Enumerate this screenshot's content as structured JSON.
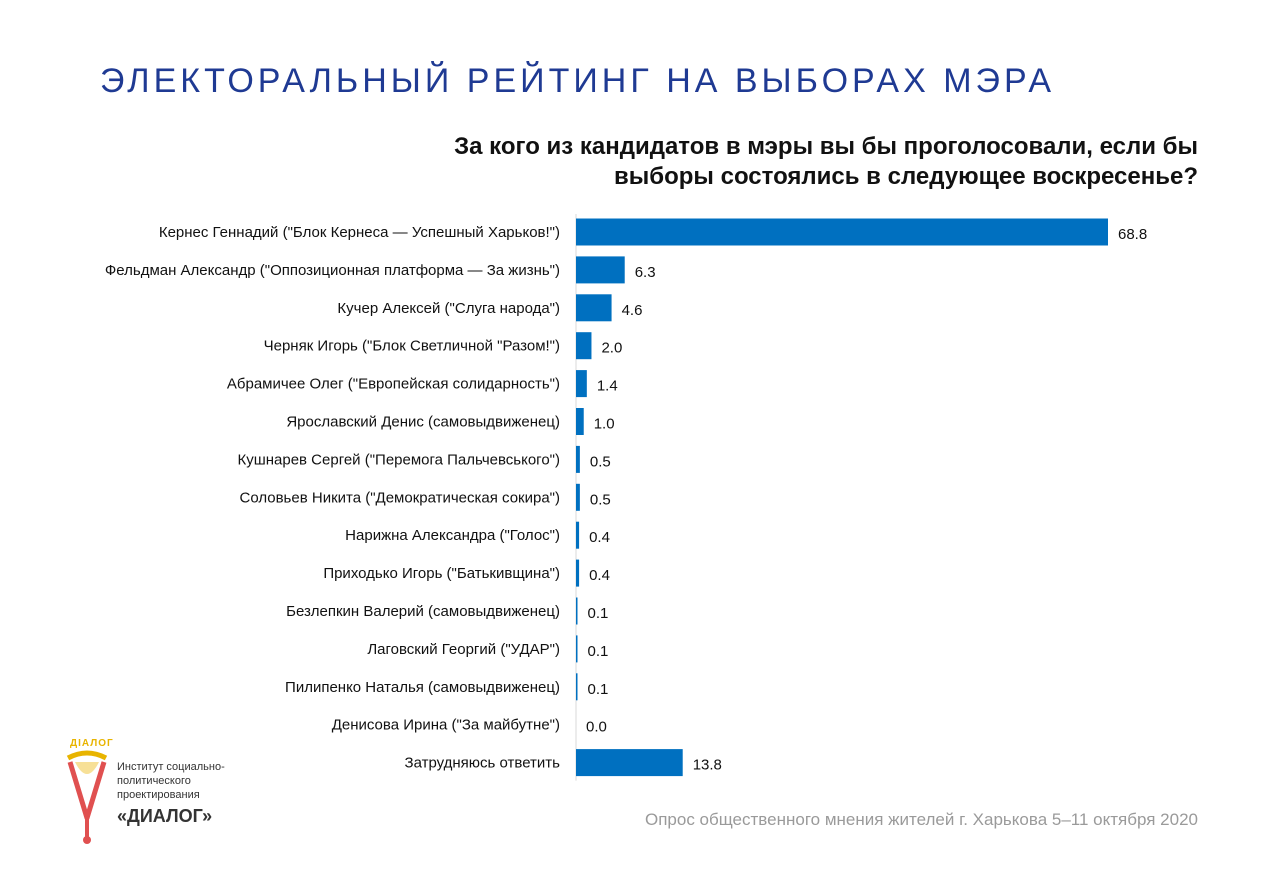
{
  "slide": {
    "title": "ЭЛЕКТОРАЛЬНЫЙ РЕЙТИНГ НА ВЫБОРАХ МЭРА",
    "question_line1": "За кого из кандидатов в мэры вы бы проголосовали, если бы",
    "question_line2": "выборы состоялись в следующее воскресенье?",
    "footer": "Опрос общественного мнения жителей г. Харькова 5–11 октября 2020"
  },
  "logo": {
    "arc_text": "ДІАЛОГ",
    "line1": "Институт социально-",
    "line2": "политического",
    "line3": "проектирования",
    "brand": "«ДИАЛОГ»"
  },
  "colors": {
    "bar": "#0070c0",
    "title": "#1f3a93",
    "footer": "#9a9a9a"
  },
  "chart_data": {
    "type": "bar",
    "orientation": "horizontal",
    "categories": [
      "Кернес Геннадий (\"Блок Кернеса — Успешный Харьков!\")",
      "Фельдман Александр (\"Оппозиционная платформа — За жизнь\")",
      "Кучер Алексей (\"Слуга народа\")",
      "Черняк Игорь (\"Блок Светличной \"Разом!\")",
      "Абрамичее Олег (\"Европейская солидарность\")",
      "Ярославский Денис (самовыдвиженец)",
      "Кушнарев Сергей (\"Перемога Пальчевського\")",
      "Соловьев Никита (\"Демократическая сокира\")",
      "Нарижна Александра (\"Голос\")",
      "Приходько Игорь (\"Батькивщина\")",
      "Безлепкин Валерий (самовыдвиженец)",
      "Лаговский Георгий (\"УДАР\")",
      "Пилипенко Наталья (самовыдвиженец)",
      "Денисова Ирина (\"За майбутне\")",
      "Затрудняюсь ответить"
    ],
    "values": [
      68.8,
      6.3,
      4.6,
      2.0,
      1.4,
      1.0,
      0.5,
      0.5,
      0.4,
      0.4,
      0.1,
      0.1,
      0.1,
      0.0,
      13.8
    ],
    "value_labels": [
      "68.8",
      "6.3",
      "4.6",
      "2.0",
      "1.4",
      "1.0",
      "0.5",
      "0.5",
      "0.4",
      "0.4",
      "0.1",
      "0.1",
      "0.1",
      "0.0",
      "13.8"
    ],
    "xlim": [
      0,
      70
    ],
    "grid": false,
    "legend": "none"
  }
}
